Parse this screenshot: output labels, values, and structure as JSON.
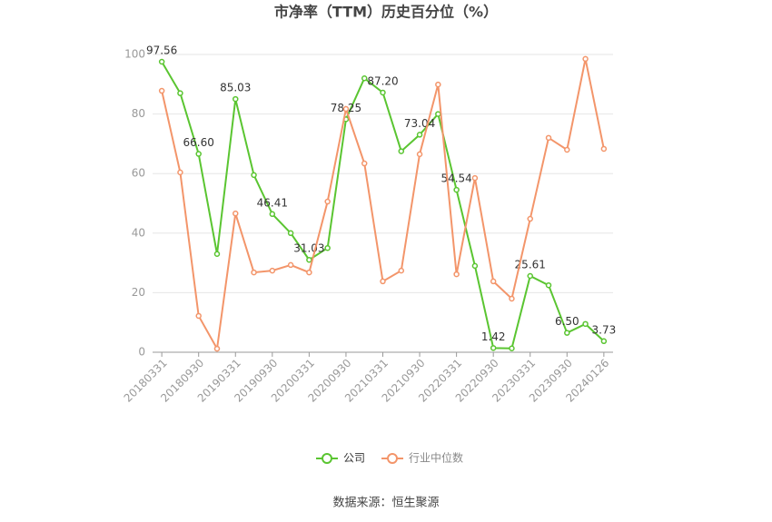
{
  "chart_data": {
    "type": "line",
    "title": "市净率（TTM）历史百分位（%）",
    "source": "数据来源：恒生聚源",
    "categories": [
      "20180331",
      null,
      "20180930",
      null,
      "20190331",
      null,
      "20190930",
      null,
      "20200331",
      null,
      "20200930",
      null,
      "20210331",
      null,
      "20210930",
      null,
      "20220331",
      null,
      "20220930",
      null,
      "20230331",
      null,
      "20230930",
      null,
      "20240126"
    ],
    "series": [
      {
        "name": "公司",
        "color": "#5ac531",
        "values": [
          97.56,
          87,
          66.6,
          33,
          85.03,
          59.5,
          46.41,
          40,
          31.03,
          35,
          78.25,
          92,
          87.2,
          67.5,
          73.04,
          80,
          54.54,
          29,
          1.42,
          1.3,
          25.61,
          22.5,
          6.5,
          9.5,
          3.73
        ],
        "value_labels": [
          "97.56",
          null,
          "66.60",
          null,
          "85.03",
          null,
          "46.41",
          null,
          "31.03",
          null,
          "78.25",
          null,
          "87.20",
          null,
          "73.04",
          null,
          "54.54",
          null,
          "1.42",
          null,
          "25.61",
          null,
          "6.50",
          null,
          "3.73"
        ]
      },
      {
        "name": "行业中位数",
        "color": "#f3956a",
        "values": [
          87.8,
          60.4,
          12.2,
          1.2,
          46.6,
          26.8,
          27.4,
          29.3,
          26.8,
          50.6,
          81.7,
          63.4,
          23.8,
          27.4,
          66.5,
          89.9,
          26.2,
          58.5,
          23.8,
          18,
          44.8,
          72,
          68,
          98.5,
          68.3
        ]
      }
    ],
    "ylim": [
      0,
      100
    ],
    "yticks": [
      0,
      20,
      40,
      60,
      80,
      100
    ],
    "grid": true
  }
}
